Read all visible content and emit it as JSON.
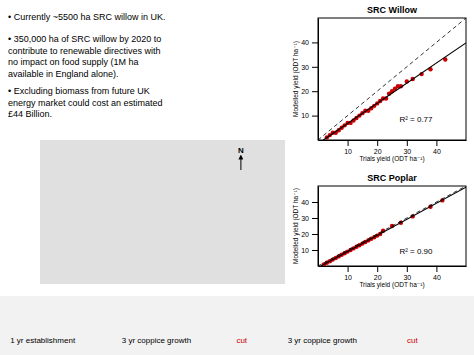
{
  "chart_data": [
    {
      "type": "scatter",
      "title": "SRC Willow",
      "x_label": "Trials yield (ODT ha⁻¹)",
      "y_label": "Modelled yield (ODT ha⁻¹)",
      "xlim": [
        0,
        50
      ],
      "ylim": [
        0,
        50
      ],
      "xticks": [
        10,
        20,
        30,
        40
      ],
      "yticks": [
        10,
        20,
        30,
        40
      ],
      "series": [
        {
          "type": "scatter",
          "color": "#cc0000",
          "x": [
            3,
            4,
            5,
            6,
            7,
            8,
            9,
            10,
            11,
            12,
            13,
            14,
            15,
            16,
            17,
            18,
            19,
            20,
            21,
            22,
            23,
            24,
            25,
            26,
            27,
            28,
            30,
            32,
            35,
            38,
            43
          ],
          "values": [
            1,
            2,
            3,
            3,
            4,
            5,
            6,
            7,
            7,
            8,
            9,
            10,
            11,
            12,
            12,
            13,
            14,
            15,
            16,
            17,
            17,
            19,
            20,
            21,
            22,
            22,
            24,
            25,
            27,
            29,
            33
          ]
        },
        {
          "type": "line",
          "line_style": "solid",
          "color": "#000000",
          "x": [
            1.7779,
            50
          ],
          "values": [
            0,
            39.7966
          ]
        },
        {
          "type": "line",
          "line_style": "dashed",
          "color": "#000000",
          "x": [
            0,
            50
          ],
          "values": [
            0,
            50
          ]
        }
      ],
      "annotations": [
        "R² = 0.77"
      ]
    },
    {
      "type": "scatter",
      "title": "SRC Poplar",
      "x_label": "Trials yield (ODT ha⁻¹)",
      "y_label": "Modelled yield (ODT ha⁻¹)",
      "xlim": [
        0,
        50
      ],
      "ylim": [
        0,
        50
      ],
      "xticks": [
        10,
        20,
        30,
        40
      ],
      "yticks": [
        10,
        20,
        30,
        40
      ],
      "series": [
        {
          "type": "scatter",
          "color": "#cc0000",
          "x": [
            2,
            3,
            4,
            5,
            6,
            7,
            8,
            9,
            10,
            11,
            12,
            13,
            14,
            15,
            16,
            17,
            18,
            19,
            20,
            21,
            22,
            25,
            28,
            32,
            38,
            42
          ],
          "values": [
            1,
            2,
            3,
            4,
            5,
            6,
            7,
            8,
            9,
            10,
            11,
            12,
            13,
            14,
            15,
            16,
            17,
            18,
            19,
            20,
            22,
            25,
            27,
            31,
            37,
            41
          ]
        },
        {
          "type": "line",
          "line_style": "solid",
          "color": "#000000",
          "x": [
            1.0048,
            50
          ],
          "values": [
            0,
            49.2614
          ]
        },
        {
          "type": "line",
          "line_style": "dashed",
          "color": "#000000",
          "x": [
            0,
            50
          ],
          "values": [
            0,
            50
          ]
        }
      ],
      "annotations": [
        "R² = 0.90"
      ]
    }
  ],
  "annotations": [
    {
      "text": "•  Currently ~5500 ha SRC willow in UK."
    },
    {
      "text": "•  350,000 ha of SRC willow by 2020 to\ncontribute to renewable directives with\nno impact on food supply (1M ha\navailable in England alone)."
    },
    {
      "text": "•  Excluding biomass from future UK\nenergy market could cost an estimated\n£44 Billion."
    },
    {
      "text": "N"
    },
    {
      "text": "1 yr establishment"
    },
    {
      "text": "3 yr coppice growth"
    },
    {
      "text": "cut",
      "color": "#cc0000"
    },
    {
      "text": "3 yr coppice growth"
    },
    {
      "text": "cut",
      "color": "#cc0000"
    }
  ]
}
